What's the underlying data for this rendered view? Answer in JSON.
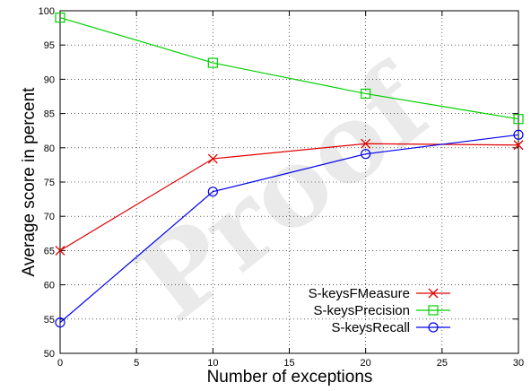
{
  "chart_data": {
    "type": "line",
    "title": "",
    "xlabel": "Number of exceptions",
    "ylabel": "Average score  in percent",
    "xlim": [
      0,
      30
    ],
    "ylim": [
      50,
      100
    ],
    "xticks": [
      0,
      5,
      10,
      15,
      20,
      25,
      30
    ],
    "yticks": [
      50,
      55,
      60,
      65,
      70,
      75,
      80,
      85,
      90,
      95,
      100
    ],
    "grid": true,
    "legend": "bottom-right",
    "series": [
      {
        "name": "S-keysFMeasure",
        "color": "#e00000",
        "marker": "x",
        "x": [
          0,
          10,
          20,
          30
        ],
        "y": [
          65.0,
          78.4,
          80.6,
          80.4
        ]
      },
      {
        "name": "S-keysPrecision",
        "color": "#00d000",
        "marker": "square",
        "x": [
          0,
          10,
          20,
          30
        ],
        "y": [
          99.0,
          92.4,
          87.9,
          84.2
        ]
      },
      {
        "name": "S-keysRecall",
        "color": "#0000ee",
        "marker": "circle",
        "x": [
          0,
          10,
          20,
          30
        ],
        "y": [
          54.5,
          73.6,
          79.1,
          81.9
        ]
      }
    ],
    "watermark": "Proof"
  }
}
